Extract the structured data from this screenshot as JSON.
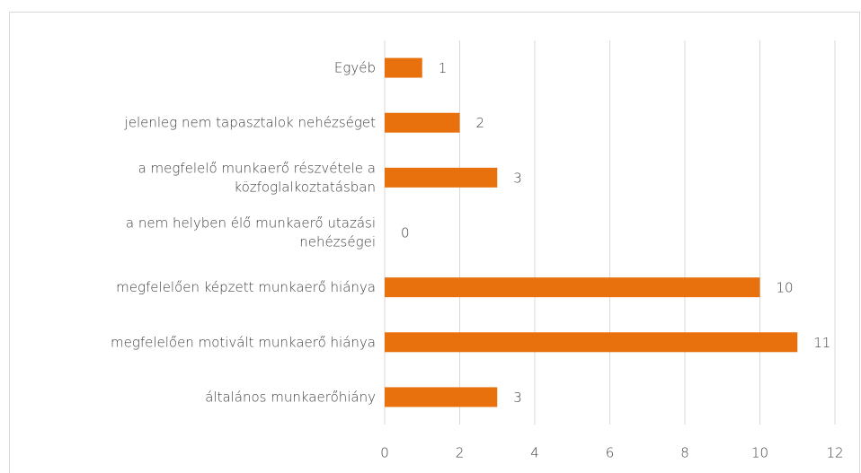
{
  "chart_data": {
    "type": "bar",
    "orientation": "horizontal",
    "categories": [
      "Egyéb",
      "jelenleg nem tapasztalok nehézséget",
      "a megfelelő munkaerő részvétele a közfoglalkoztatásban",
      "a nem helyben élő munkaerő utazási nehézségei",
      "megfelelően képzett munkaerő hiánya",
      "megfelelően motivált munkaerő hiánya",
      "általános munkaerőhiány"
    ],
    "values": [
      1,
      2,
      3,
      0,
      10,
      11,
      3
    ],
    "color": "#e8700d",
    "xlim": [
      0,
      12
    ],
    "xticks": [
      0,
      2,
      4,
      6,
      8,
      10,
      12
    ],
    "grid": true
  }
}
